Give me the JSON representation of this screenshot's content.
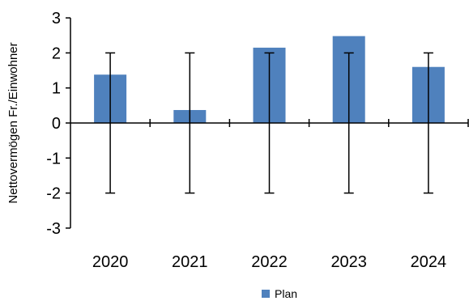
{
  "chart_data": {
    "type": "bar",
    "categories": [
      "2020",
      "2021",
      "2022",
      "2023",
      "2024"
    ],
    "series": [
      {
        "name": "Plan",
        "values": [
          1.38,
          0.37,
          2.15,
          2.48,
          1.6
        ],
        "error_low": [
          -2,
          -2,
          -2,
          -2,
          -2
        ],
        "error_high": [
          2,
          2,
          2,
          2,
          2
        ],
        "color": "#4f81bd"
      }
    ],
    "ylabel": "Nettovermögen Fr./Einwohner",
    "xlabel": "",
    "ylim": [
      -3,
      3
    ],
    "yticks": [
      3,
      2,
      1,
      0,
      -1,
      -2,
      -3
    ],
    "yticklabels": [
      "3",
      "2",
      "1",
      "0",
      "-1",
      "-2",
      "-3"
    ],
    "grid": false,
    "legend_position": "bottom"
  }
}
